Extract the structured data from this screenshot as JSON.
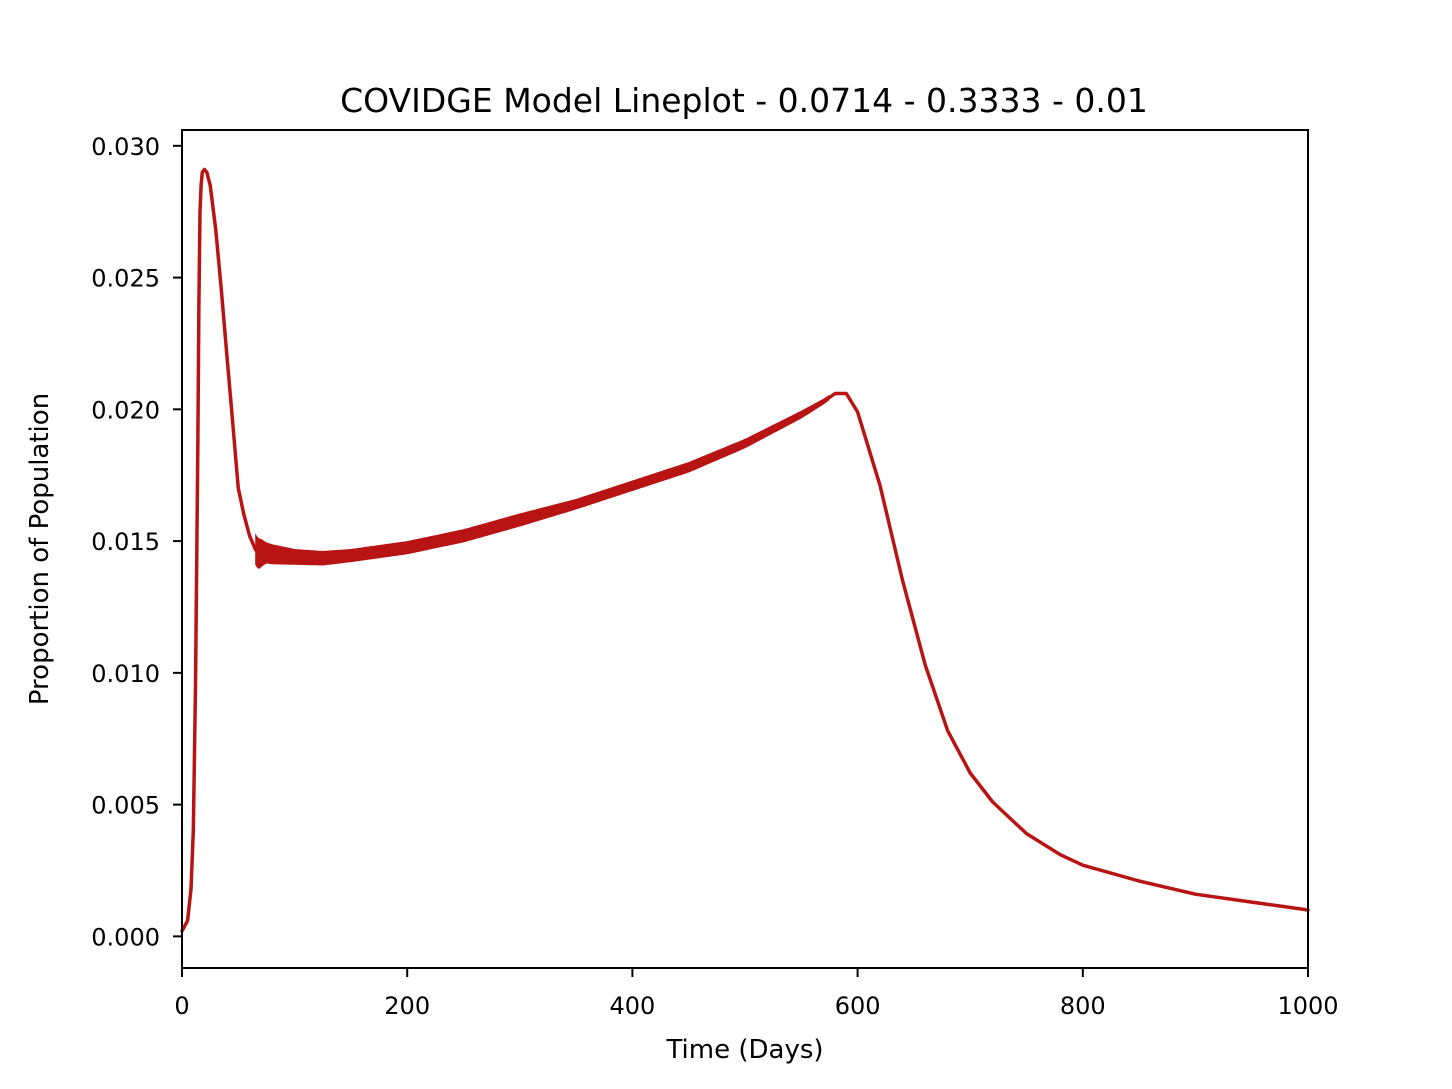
{
  "chart_data": {
    "type": "line",
    "title": "COVIDGE Model Lineplot - 0.0714 - 0.3333 - 0.01",
    "xlabel": "Time (Days)",
    "ylabel": "Proportion of Population",
    "xlim": [
      0,
      1000
    ],
    "ylim": [
      -0.0012,
      0.0306
    ],
    "xticks": [
      0,
      200,
      400,
      600,
      800,
      1000
    ],
    "xtick_labels": [
      "0",
      "200",
      "400",
      "600",
      "800",
      "1000"
    ],
    "yticks": [
      0.0,
      0.005,
      0.01,
      0.015,
      0.02,
      0.025,
      0.03
    ],
    "ytick_labels": [
      "0.000",
      "0.005",
      "0.010",
      "0.015",
      "0.020",
      "0.025",
      "0.030"
    ],
    "grid": false,
    "series": [
      {
        "color": "#b81414",
        "x": [
          0,
          5,
          8,
          10,
          12,
          14,
          15,
          16,
          17,
          18,
          20,
          22,
          25,
          30,
          35,
          40,
          45,
          50,
          55,
          60,
          65,
          68,
          70,
          75,
          80,
          90,
          100,
          125,
          150,
          200,
          250,
          300,
          350,
          400,
          450,
          500,
          550,
          570,
          580,
          590,
          600,
          620,
          640,
          660,
          680,
          700,
          720,
          750,
          780,
          800,
          850,
          900,
          950,
          1000
        ],
        "y": [
          0.0002,
          0.0006,
          0.0018,
          0.004,
          0.0095,
          0.0185,
          0.024,
          0.0275,
          0.0285,
          0.029,
          0.0291,
          0.029,
          0.0285,
          0.0268,
          0.0245,
          0.022,
          0.0195,
          0.017,
          0.016,
          0.0152,
          0.0147,
          0.0145,
          0.01455,
          0.01455,
          0.0145,
          0.01445,
          0.0144,
          0.01435,
          0.01445,
          0.01475,
          0.0152,
          0.0158,
          0.0164,
          0.0171,
          0.0178,
          0.0187,
          0.0198,
          0.0203,
          0.0206,
          0.0206,
          0.0199,
          0.0171,
          0.0135,
          0.0103,
          0.0078,
          0.0062,
          0.0051,
          0.0039,
          0.0031,
          0.0027,
          0.0021,
          0.0016,
          0.0013,
          0.001
        ]
      }
    ],
    "band": {
      "x_start": 65,
      "x_end": 575,
      "x": [
        68,
        75,
        100,
        150,
        200,
        250,
        300,
        350,
        400,
        450,
        500,
        550,
        575
      ],
      "half_width": [
        0.0006,
        0.0004,
        0.0003,
        0.00025,
        0.00025,
        0.00025,
        0.00025,
        0.0002,
        0.0002,
        0.0002,
        0.00018,
        0.00015,
        0.0001
      ]
    }
  }
}
